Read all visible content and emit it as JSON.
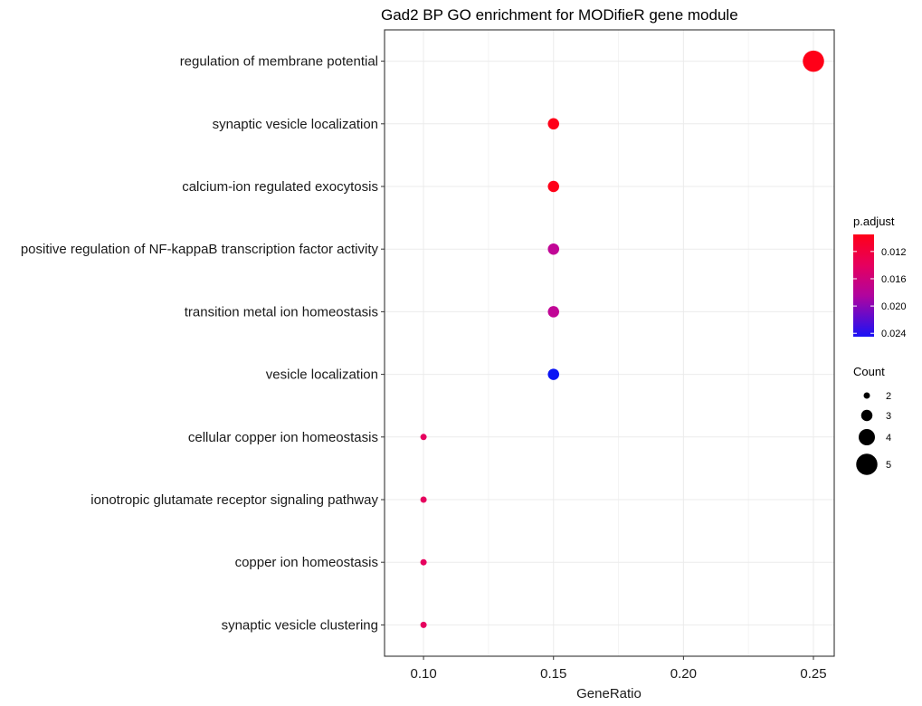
{
  "chart_data": {
    "type": "scatter",
    "title": "Gad2 BP GO enrichment for MODifieR gene module",
    "xlabel": "GeneRatio",
    "ylabel": "",
    "xlim": [
      0.085,
      0.258
    ],
    "x_ticks": [
      0.1,
      0.15,
      0.2,
      0.25
    ],
    "x_tick_labels": [
      "0.10",
      "0.15",
      "0.20",
      "0.25"
    ],
    "grid": true,
    "legend_position": "right",
    "terms": [
      {
        "label": "regulation of membrane potential",
        "gene_ratio": 0.25,
        "count": 5,
        "p_adjust": 0.0095,
        "color": "#ff0018"
      },
      {
        "label": "synaptic vesicle localization",
        "gene_ratio": 0.15,
        "count": 3,
        "p_adjust": 0.0095,
        "color": "#ff0018"
      },
      {
        "label": "calcium-ion regulated exocytosis",
        "gene_ratio": 0.15,
        "count": 3,
        "p_adjust": 0.0095,
        "color": "#ff0018"
      },
      {
        "label": "positive regulation of NF-kappaB transcription factor activity",
        "gene_ratio": 0.15,
        "count": 3,
        "p_adjust": 0.018,
        "color": "#c10696"
      },
      {
        "label": "transition metal ion homeostasis",
        "gene_ratio": 0.15,
        "count": 3,
        "p_adjust": 0.018,
        "color": "#c10696"
      },
      {
        "label": "vesicle localization",
        "gene_ratio": 0.15,
        "count": 3,
        "p_adjust": 0.024,
        "color": "#0a14f4"
      },
      {
        "label": "cellular copper ion homeostasis",
        "gene_ratio": 0.1,
        "count": 2,
        "p_adjust": 0.013,
        "color": "#e6015e"
      },
      {
        "label": "ionotropic glutamate receptor signaling pathway",
        "gene_ratio": 0.1,
        "count": 2,
        "p_adjust": 0.013,
        "color": "#e6015e"
      },
      {
        "label": "copper ion homeostasis",
        "gene_ratio": 0.1,
        "count": 2,
        "p_adjust": 0.013,
        "color": "#e6015e"
      },
      {
        "label": "synaptic vesicle clustering",
        "gene_ratio": 0.1,
        "count": 2,
        "p_adjust": 0.013,
        "color": "#e6015e"
      }
    ],
    "legend_color": {
      "title": "p.adjust",
      "range": [
        0.0095,
        0.0245
      ],
      "ticks": [
        0.012,
        0.016,
        0.02,
        0.024
      ],
      "tick_labels": [
        "0.012",
        "0.016",
        "0.020",
        "0.024"
      ],
      "low_color": "#ff0018",
      "high_color": "#0000ff"
    },
    "legend_size": {
      "title": "Count",
      "values": [
        2,
        3,
        4,
        5
      ],
      "labels": [
        "2",
        "3",
        "4",
        "5"
      ]
    }
  }
}
